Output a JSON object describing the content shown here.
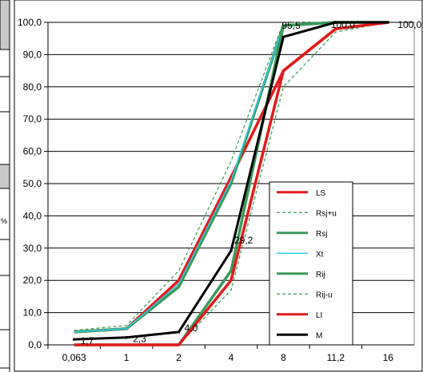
{
  "side_mark": "%",
  "chart_data": {
    "type": "line",
    "title": "",
    "xlabel": "",
    "ylabel": "",
    "categories": [
      "0,063",
      "1",
      "2",
      "4",
      "8",
      "11,2",
      "16"
    ],
    "ylim": [
      0,
      100
    ],
    "yticks": [
      "0,0",
      "10,0",
      "20,0",
      "30,0",
      "40,0",
      "50,0",
      "60,0",
      "70,0",
      "80,0",
      "90,0",
      "100,0"
    ],
    "grid": "horizontal",
    "legend_position": "right",
    "series": [
      {
        "name": "LS",
        "color": "#e31a1c",
        "style": "solid",
        "width": 3.5,
        "values": [
          4,
          5,
          20,
          52,
          85,
          98,
          100
        ]
      },
      {
        "name": "Rsj+u",
        "color": "#3a9a5a",
        "style": "dashed",
        "width": 1.2,
        "values": [
          4.5,
          6,
          23,
          57,
          100,
          100,
          100
        ]
      },
      {
        "name": "Rsj",
        "color": "#3a9a5a",
        "style": "solid",
        "width": 3.5,
        "values": [
          4,
          5,
          18,
          50,
          99,
          100,
          100
        ]
      },
      {
        "name": "Xt",
        "color": "#33ccee",
        "style": "solid",
        "width": 1.5,
        "values": [
          4,
          5,
          19,
          51,
          99,
          100,
          100
        ]
      },
      {
        "name": "Rij",
        "color": "#3a9a5a",
        "style": "solid",
        "width": 3.5,
        "values": [
          0,
          0,
          0,
          23,
          99,
          100,
          100
        ]
      },
      {
        "name": "Rij-u",
        "color": "#3a9a5a",
        "style": "dashed",
        "width": 1.2,
        "values": [
          0,
          0,
          0,
          17,
          80,
          97,
          100
        ]
      },
      {
        "name": "LI",
        "color": "#e31a1c",
        "style": "solid",
        "width": 3.5,
        "values": [
          0,
          0,
          0,
          20,
          85,
          98,
          100
        ]
      },
      {
        "name": "M",
        "color": "#000000",
        "style": "solid",
        "width": 3,
        "values": [
          1.7,
          2.3,
          4.0,
          29.2,
          95.5,
          100.0,
          100.0
        ]
      }
    ],
    "data_labels": [
      {
        "series": "M",
        "index": 0,
        "text": "1,7"
      },
      {
        "series": "M",
        "index": 1,
        "text": "2,3"
      },
      {
        "series": "M",
        "index": 2,
        "text": "4,0"
      },
      {
        "series": "M",
        "index": 3,
        "text": "29,2"
      },
      {
        "series": "M",
        "index": 4,
        "text": "95,5"
      },
      {
        "series": "M",
        "index": 5,
        "text": "100,0"
      },
      {
        "series": "M",
        "index": 6,
        "text": "100,0"
      }
    ]
  }
}
